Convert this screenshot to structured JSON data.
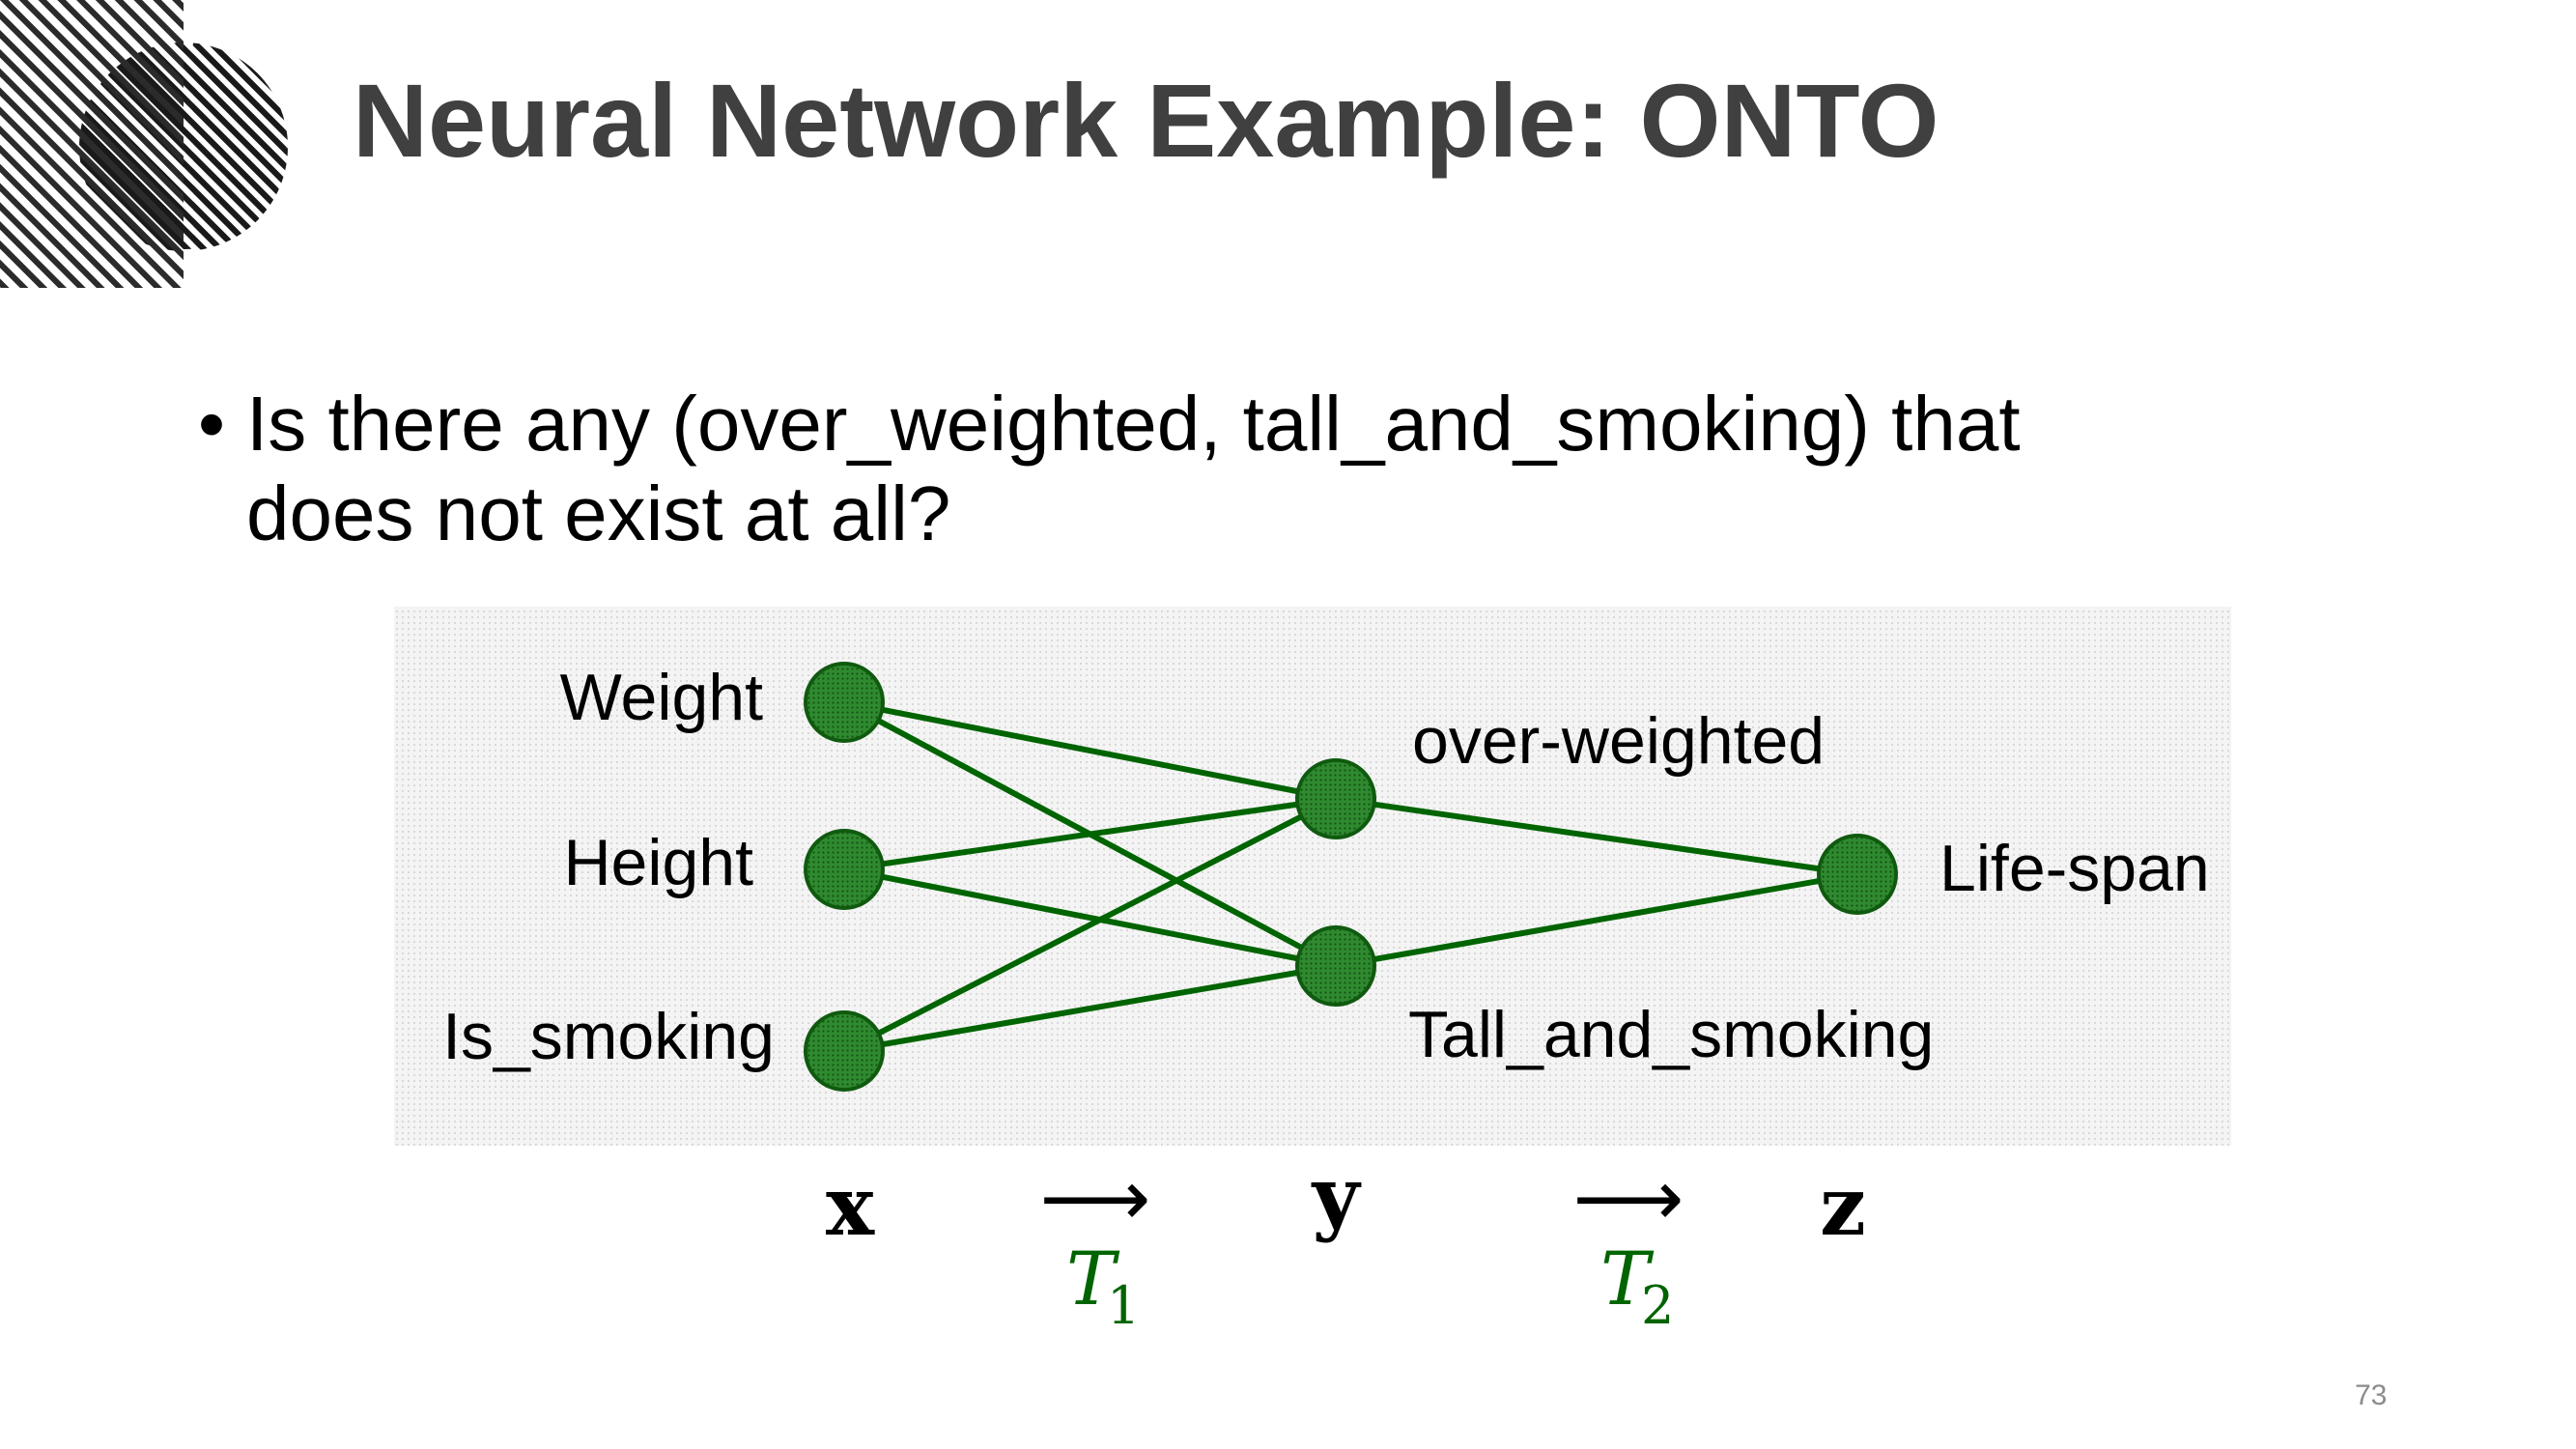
{
  "slide": {
    "title": "Neural Network Example: ONTO",
    "bullet": {
      "symbol": "•",
      "text": "Is there any (over_weighted, tall_and_smoking) that does not exist at all?"
    },
    "page_number": "73"
  },
  "diagram": {
    "node_color": "#1e7a1e",
    "edge_color": "#006400",
    "input_labels": [
      "Weight",
      "Height",
      "Is_smoking"
    ],
    "hidden_labels": [
      "over-weighted",
      "Tall_and_smoking"
    ],
    "output_label": "Life-span",
    "edges": [
      [
        "Weight",
        "over-weighted"
      ],
      [
        "Weight",
        "Tall_and_smoking"
      ],
      [
        "Height",
        "over-weighted"
      ],
      [
        "Height",
        "Tall_and_smoking"
      ],
      [
        "Is_smoking",
        "over-weighted"
      ],
      [
        "Is_smoking",
        "Tall_and_smoking"
      ],
      [
        "over-weighted",
        "Life-span"
      ],
      [
        "Tall_and_smoking",
        "Life-span"
      ]
    ]
  },
  "notation": {
    "x": "x",
    "y": "y",
    "z": "z",
    "arrow": "⟶",
    "t1_symbol": "T",
    "t1_subscript": "1",
    "t2_symbol": "T",
    "t2_subscript": "2"
  }
}
